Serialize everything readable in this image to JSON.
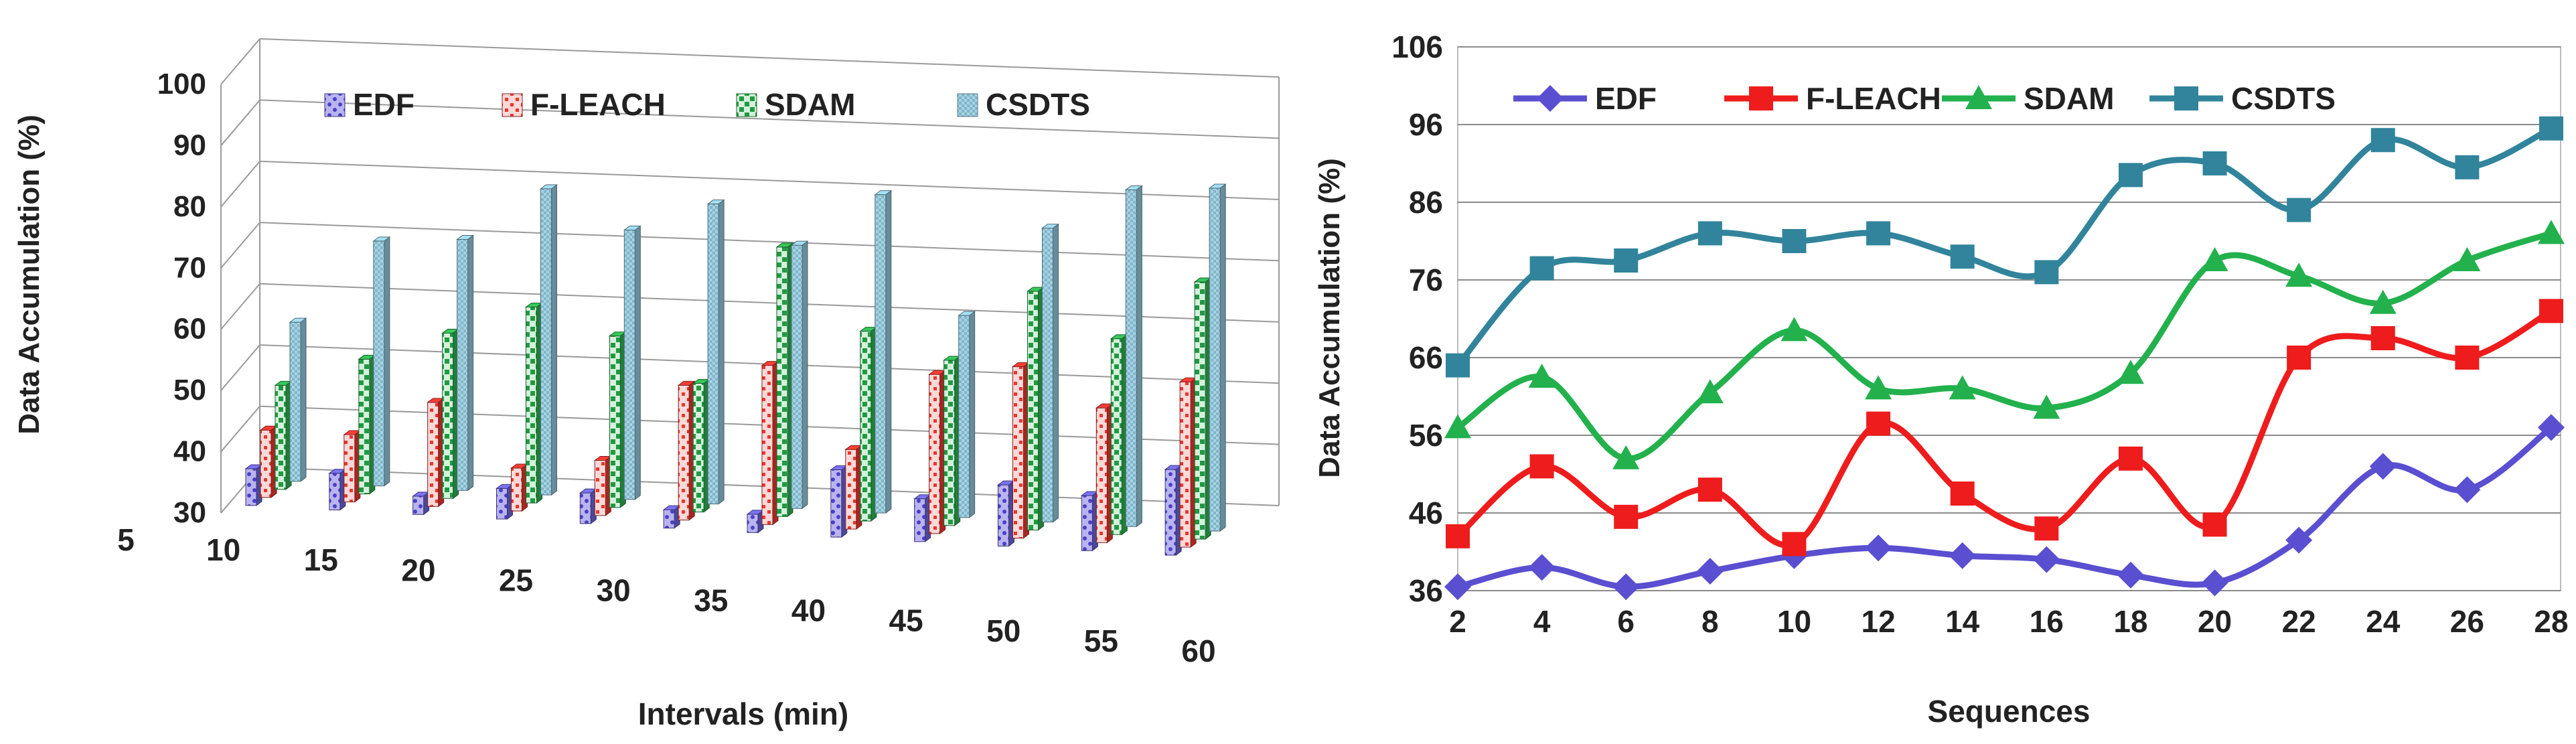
{
  "chart_data": [
    {
      "type": "bar",
      "title": "",
      "xlabel": "Intervals (min)",
      "ylabel": "Data Accumulation (%)",
      "ylim": [
        30,
        100
      ],
      "yticks": [
        "30",
        "40",
        "50",
        "60",
        "70",
        "80",
        "90",
        "100"
      ],
      "categories": [
        "5",
        "10",
        "15",
        "20",
        "25",
        "30",
        "35",
        "40",
        "45",
        "50",
        "55",
        "60"
      ],
      "legend_position": "top",
      "grid": true,
      "series": [
        {
          "name": "EDF",
          "color": "#6b63d6",
          "values": [
            36,
            36,
            33,
            35,
            35,
            33,
            33,
            41,
            37,
            40,
            39,
            44
          ]
        },
        {
          "name": "F-LEACH",
          "color": "#e8362f",
          "values": [
            41,
            41,
            47,
            37,
            39,
            52,
            56,
            43,
            56,
            58,
            52,
            57
          ]
        },
        {
          "name": "SDAM",
          "color": "#2fae4f",
          "values": [
            47,
            52,
            57,
            62,
            58,
            51,
            74,
            61,
            57,
            69,
            62,
            72
          ]
        },
        {
          "name": "CSDTS",
          "color": "#8fc3d6",
          "values": [
            56,
            70,
            71,
            80,
            74,
            79,
            73,
            82,
            63,
            78,
            85,
            86
          ]
        }
      ]
    },
    {
      "type": "line",
      "title": "",
      "xlabel": "Sequences",
      "ylabel": "Data Accumulation (%)",
      "ylim": [
        36,
        106
      ],
      "yticks": [
        "36",
        "46",
        "56",
        "66",
        "76",
        "86",
        "96",
        "106"
      ],
      "x": [
        2,
        4,
        6,
        8,
        10,
        12,
        14,
        16,
        18,
        20,
        22,
        24,
        26,
        28
      ],
      "xticks": [
        "2",
        "4",
        "6",
        "8",
        "10",
        "12",
        "14",
        "16",
        "18",
        "20",
        "22",
        "24",
        "26",
        "28"
      ],
      "legend_position": "top",
      "grid": true,
      "series": [
        {
          "name": "EDF",
          "color": "#5a4fd0",
          "marker": "diamond",
          "values": [
            36.5,
            39,
            36.5,
            38.5,
            40.5,
            41.5,
            40.5,
            40,
            38,
            37,
            42.5,
            52,
            49,
            57
          ]
        },
        {
          "name": "F-LEACH",
          "color": "#ee1c1c",
          "marker": "square",
          "values": [
            43,
            52,
            45.5,
            49,
            42,
            57.5,
            48.5,
            44,
            53,
            44.5,
            66,
            68.5,
            66,
            72
          ]
        },
        {
          "name": "SDAM",
          "color": "#22b14c",
          "marker": "triangle",
          "values": [
            57,
            63.5,
            53,
            61.5,
            69.5,
            62,
            62,
            59.5,
            64,
            78.5,
            76.5,
            73,
            78.5,
            82
          ]
        },
        {
          "name": "CSDTS",
          "color": "#31849b",
          "marker": "square",
          "values": [
            65,
            77.5,
            78.5,
            82,
            81,
            82,
            79,
            77,
            89.5,
            91,
            85,
            94,
            90.5,
            95.5
          ]
        }
      ]
    }
  ]
}
